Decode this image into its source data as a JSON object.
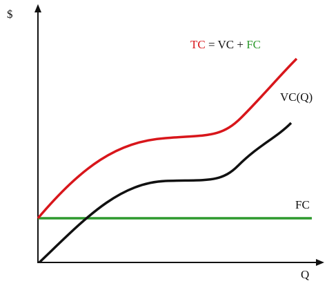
{
  "axes": {
    "y_label": "$",
    "x_label": "Q"
  },
  "equation": {
    "total": "TC",
    "middle": "= VC +",
    "fixed": "FC"
  },
  "curves": {
    "variable_cost": "VC(Q)",
    "fixed_cost": "FC"
  }
}
